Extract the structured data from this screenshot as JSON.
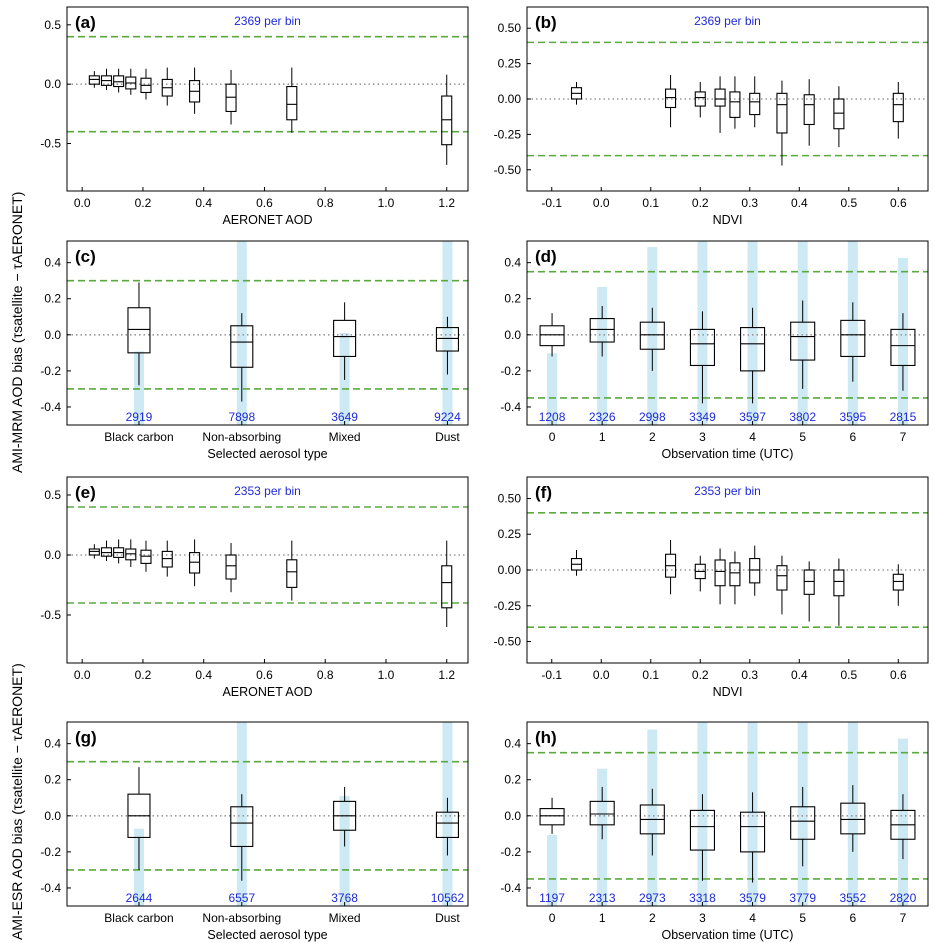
{
  "figure": {
    "ylabel_top": "AMI-MRM AOD bias (τsatellite − τAERONET)",
    "ylabel_bottom": "AMI-ESR AOD bias (τsatellite − τAERONET)"
  },
  "colors": {
    "ref_line": "#5aaa3e",
    "zero_line": "#999999",
    "count_bar": "#cce9f4",
    "count_text": "#1f2ad6"
  },
  "chart_data": [
    {
      "panel": "(a)",
      "type": "box",
      "note": "2369 per bin",
      "xlabel": "AERONET AOD",
      "xlim": [
        -0.05,
        1.27
      ],
      "ylim": [
        -0.9,
        0.65
      ],
      "xticks": [
        "0.0",
        "0.2",
        "0.4",
        "0.6",
        "0.8",
        "1.0",
        "1.2"
      ],
      "xtick_vals": [
        0,
        0.2,
        0.4,
        0.6,
        0.8,
        1.0,
        1.2
      ],
      "yticks": [
        "-0.5",
        "0.0",
        "0.5"
      ],
      "ytick_vals": [
        -0.5,
        0,
        0.5
      ],
      "ref_lines": [
        0.4,
        -0.4
      ],
      "boxes": [
        {
          "x": 0.04,
          "lo": -0.03,
          "q1": 0.0,
          "med": 0.04,
          "q3": 0.07,
          "hi": 0.11
        },
        {
          "x": 0.08,
          "lo": -0.05,
          "q1": -0.01,
          "med": 0.03,
          "q3": 0.07,
          "hi": 0.13
        },
        {
          "x": 0.12,
          "lo": -0.07,
          "q1": -0.02,
          "med": 0.02,
          "q3": 0.07,
          "hi": 0.13
        },
        {
          "x": 0.16,
          "lo": -0.09,
          "q1": -0.04,
          "med": 0.01,
          "q3": 0.06,
          "hi": 0.13
        },
        {
          "x": 0.21,
          "lo": -0.13,
          "q1": -0.07,
          "med": -0.01,
          "q3": 0.05,
          "hi": 0.13
        },
        {
          "x": 0.28,
          "lo": -0.18,
          "q1": -0.1,
          "med": -0.03,
          "q3": 0.04,
          "hi": 0.14
        },
        {
          "x": 0.37,
          "lo": -0.25,
          "q1": -0.15,
          "med": -0.06,
          "q3": 0.03,
          "hi": 0.14
        },
        {
          "x": 0.49,
          "lo": -0.34,
          "q1": -0.23,
          "med": -0.11,
          "q3": 0.0,
          "hi": 0.12
        },
        {
          "x": 0.69,
          "lo": -0.41,
          "q1": -0.3,
          "med": -0.17,
          "q3": -0.02,
          "hi": 0.14
        },
        {
          "x": 1.2,
          "lo": -0.68,
          "q1": -0.51,
          "med": -0.3,
          "q3": -0.1,
          "hi": 0.08
        }
      ]
    },
    {
      "panel": "(b)",
      "type": "box",
      "note": "2369 per bin",
      "xlabel": "NDVI",
      "xlim": [
        -0.15,
        0.66
      ],
      "ylim": [
        -0.65,
        0.65
      ],
      "xticks": [
        "-0.1",
        "0.0",
        "0.1",
        "0.2",
        "0.3",
        "0.4",
        "0.5",
        "0.6"
      ],
      "xtick_vals": [
        -0.1,
        0,
        0.1,
        0.2,
        0.3,
        0.4,
        0.5,
        0.6
      ],
      "yticks": [
        "-0.50",
        "-0.25",
        "0.00",
        "0.25",
        "0.50"
      ],
      "ytick_vals": [
        -0.5,
        -0.25,
        0,
        0.25,
        0.5
      ],
      "ref_lines": [
        0.4,
        -0.4
      ],
      "boxes": [
        {
          "x": -0.05,
          "lo": -0.04,
          "q1": 0.0,
          "med": 0.04,
          "q3": 0.08,
          "hi": 0.12
        },
        {
          "x": 0.14,
          "lo": -0.2,
          "q1": -0.06,
          "med": 0.01,
          "q3": 0.07,
          "hi": 0.17
        },
        {
          "x": 0.2,
          "lo": -0.13,
          "q1": -0.05,
          "med": 0.01,
          "q3": 0.05,
          "hi": 0.12
        },
        {
          "x": 0.24,
          "lo": -0.24,
          "q1": -0.05,
          "med": 0.0,
          "q3": 0.07,
          "hi": 0.16
        },
        {
          "x": 0.27,
          "lo": -0.21,
          "q1": -0.13,
          "med": -0.02,
          "q3": 0.05,
          "hi": 0.16
        },
        {
          "x": 0.31,
          "lo": -0.2,
          "q1": -0.11,
          "med": -0.02,
          "q3": 0.04,
          "hi": 0.16
        },
        {
          "x": 0.365,
          "lo": -0.47,
          "q1": -0.24,
          "med": -0.04,
          "q3": 0.04,
          "hi": 0.13
        },
        {
          "x": 0.42,
          "lo": -0.33,
          "q1": -0.18,
          "med": -0.04,
          "q3": 0.03,
          "hi": 0.14
        },
        {
          "x": 0.48,
          "lo": -0.34,
          "q1": -0.21,
          "med": -0.1,
          "q3": 0.0,
          "hi": 0.09
        },
        {
          "x": 0.6,
          "lo": -0.28,
          "q1": -0.16,
          "med": -0.04,
          "q3": 0.04,
          "hi": 0.12
        }
      ]
    },
    {
      "panel": "(c)",
      "type": "box",
      "xlabel": "Selected aerosol type",
      "xlim": [
        0.3,
        4.2
      ],
      "ylim": [
        -0.5,
        0.52
      ],
      "xticks": [
        "Black carbon",
        "Non-absorbing",
        "Mixed",
        "Dust"
      ],
      "xtick_vals": [
        1,
        2,
        3,
        4
      ],
      "yticks": [
        "-0.4",
        "-0.2",
        "0.0",
        "0.2",
        "0.4"
      ],
      "ytick_vals": [
        -0.4,
        -0.2,
        0,
        0.2,
        0.4
      ],
      "ref_lines": [
        0.3,
        -0.3
      ],
      "count_labels": [
        "2919",
        "7898",
        "3649",
        "9224"
      ],
      "counts": [
        2919,
        7898,
        3649,
        9224
      ],
      "count_ymax": 7300,
      "boxes": [
        {
          "x": 1,
          "lo": -0.28,
          "q1": -0.1,
          "med": 0.03,
          "q3": 0.15,
          "hi": 0.29
        },
        {
          "x": 2,
          "lo": -0.37,
          "q1": -0.18,
          "med": -0.04,
          "q3": 0.05,
          "hi": 0.12
        },
        {
          "x": 3,
          "lo": -0.25,
          "q1": -0.12,
          "med": -0.01,
          "q3": 0.08,
          "hi": 0.18
        },
        {
          "x": 4,
          "lo": -0.22,
          "q1": -0.09,
          "med": -0.02,
          "q3": 0.04,
          "hi": 0.1
        }
      ]
    },
    {
      "panel": "(d)",
      "type": "box",
      "xlabel": "Observation time (UTC)",
      "xlim": [
        -0.5,
        7.5
      ],
      "ylim": [
        -0.5,
        0.52
      ],
      "xticks": [
        "0",
        "1",
        "2",
        "3",
        "4",
        "5",
        "6",
        "7"
      ],
      "xtick_vals": [
        0,
        1,
        2,
        3,
        4,
        5,
        6,
        7
      ],
      "yticks": [
        "-0.4",
        "-0.2",
        "0.0",
        "0.2",
        "0.4"
      ],
      "ytick_vals": [
        -0.4,
        -0.2,
        0,
        0.2,
        0.4
      ],
      "ref_lines": [
        0.35,
        -0.35
      ],
      "count_labels": [
        "1208",
        "2326",
        "2998",
        "3349",
        "3597",
        "3802",
        "3595",
        "2815"
      ],
      "counts": [
        1208,
        2326,
        2998,
        3349,
        3597,
        3802,
        3595,
        2815
      ],
      "count_ymax": 3100,
      "boxes": [
        {
          "x": 0,
          "lo": -0.12,
          "q1": -0.06,
          "med": 0.0,
          "q3": 0.05,
          "hi": 0.12
        },
        {
          "x": 1,
          "lo": -0.12,
          "q1": -0.04,
          "med": 0.03,
          "q3": 0.09,
          "hi": 0.16
        },
        {
          "x": 2,
          "lo": -0.2,
          "q1": -0.08,
          "med": 0.0,
          "q3": 0.07,
          "hi": 0.15
        },
        {
          "x": 3,
          "lo": -0.38,
          "q1": -0.17,
          "med": -0.05,
          "q3": 0.03,
          "hi": 0.13
        },
        {
          "x": 4,
          "lo": -0.38,
          "q1": -0.2,
          "med": -0.05,
          "q3": 0.04,
          "hi": 0.15
        },
        {
          "x": 5,
          "lo": -0.3,
          "q1": -0.14,
          "med": -0.01,
          "q3": 0.07,
          "hi": 0.19
        },
        {
          "x": 6,
          "lo": -0.26,
          "q1": -0.12,
          "med": 0.0,
          "q3": 0.08,
          "hi": 0.18
        },
        {
          "x": 7,
          "lo": -0.31,
          "q1": -0.17,
          "med": -0.06,
          "q3": 0.03,
          "hi": 0.12
        }
      ]
    },
    {
      "panel": "(e)",
      "type": "box",
      "note": "2353 per bin",
      "xlabel": "AERONET AOD",
      "xlim": [
        -0.05,
        1.27
      ],
      "ylim": [
        -0.9,
        0.65
      ],
      "xticks": [
        "0.0",
        "0.2",
        "0.4",
        "0.6",
        "0.8",
        "1.0",
        "1.2"
      ],
      "xtick_vals": [
        0,
        0.2,
        0.4,
        0.6,
        0.8,
        1.0,
        1.2
      ],
      "yticks": [
        "-0.5",
        "0.0",
        "0.5"
      ],
      "ytick_vals": [
        -0.5,
        0,
        0.5
      ],
      "ref_lines": [
        0.4,
        -0.4
      ],
      "boxes": [
        {
          "x": 0.04,
          "lo": -0.03,
          "q1": 0.0,
          "med": 0.03,
          "q3": 0.05,
          "hi": 0.09
        },
        {
          "x": 0.08,
          "lo": -0.05,
          "q1": -0.01,
          "med": 0.02,
          "q3": 0.06,
          "hi": 0.12
        },
        {
          "x": 0.12,
          "lo": -0.07,
          "q1": -0.02,
          "med": 0.02,
          "q3": 0.06,
          "hi": 0.13
        },
        {
          "x": 0.16,
          "lo": -0.1,
          "q1": -0.04,
          "med": 0.01,
          "q3": 0.05,
          "hi": 0.13
        },
        {
          "x": 0.21,
          "lo": -0.14,
          "q1": -0.07,
          "med": -0.01,
          "q3": 0.04,
          "hi": 0.12
        },
        {
          "x": 0.28,
          "lo": -0.18,
          "q1": -0.1,
          "med": -0.03,
          "q3": 0.03,
          "hi": 0.12
        },
        {
          "x": 0.37,
          "lo": -0.26,
          "q1": -0.15,
          "med": -0.06,
          "q3": 0.02,
          "hi": 0.13
        },
        {
          "x": 0.49,
          "lo": -0.31,
          "q1": -0.2,
          "med": -0.09,
          "q3": 0.0,
          "hi": 0.1
        },
        {
          "x": 0.69,
          "lo": -0.38,
          "q1": -0.27,
          "med": -0.14,
          "q3": -0.04,
          "hi": 0.12
        },
        {
          "x": 1.2,
          "lo": -0.6,
          "q1": -0.44,
          "med": -0.23,
          "q3": -0.09,
          "hi": 0.12
        }
      ]
    },
    {
      "panel": "(f)",
      "type": "box",
      "note": "2353 per bin",
      "xlabel": "NDVI",
      "xlim": [
        -0.15,
        0.66
      ],
      "ylim": [
        -0.65,
        0.65
      ],
      "xticks": [
        "-0.1",
        "0.0",
        "0.1",
        "0.2",
        "0.3",
        "0.4",
        "0.5",
        "0.6"
      ],
      "xtick_vals": [
        -0.1,
        0,
        0.1,
        0.2,
        0.3,
        0.4,
        0.5,
        0.6
      ],
      "yticks": [
        "-0.50",
        "-0.25",
        "0.00",
        "0.25",
        "0.50"
      ],
      "ytick_vals": [
        -0.5,
        -0.25,
        0,
        0.25,
        0.5
      ],
      "ref_lines": [
        0.4,
        -0.4
      ],
      "boxes": [
        {
          "x": -0.05,
          "lo": -0.04,
          "q1": 0.0,
          "med": 0.04,
          "q3": 0.08,
          "hi": 0.14
        },
        {
          "x": 0.14,
          "lo": -0.17,
          "q1": -0.05,
          "med": 0.03,
          "q3": 0.11,
          "hi": 0.21
        },
        {
          "x": 0.2,
          "lo": -0.15,
          "q1": -0.06,
          "med": -0.01,
          "q3": 0.04,
          "hi": 0.1
        },
        {
          "x": 0.24,
          "lo": -0.24,
          "q1": -0.11,
          "med": -0.01,
          "q3": 0.07,
          "hi": 0.15
        },
        {
          "x": 0.27,
          "lo": -0.24,
          "q1": -0.11,
          "med": -0.02,
          "q3": 0.05,
          "hi": 0.13
        },
        {
          "x": 0.31,
          "lo": -0.18,
          "q1": -0.09,
          "med": 0.0,
          "q3": 0.08,
          "hi": 0.17
        },
        {
          "x": 0.365,
          "lo": -0.31,
          "q1": -0.14,
          "med": -0.04,
          "q3": 0.03,
          "hi": 0.1
        },
        {
          "x": 0.42,
          "lo": -0.36,
          "q1": -0.17,
          "med": -0.08,
          "q3": 0.0,
          "hi": 0.06
        },
        {
          "x": 0.48,
          "lo": -0.39,
          "q1": -0.18,
          "med": -0.08,
          "q3": 0.0,
          "hi": 0.08
        },
        {
          "x": 0.6,
          "lo": -0.25,
          "q1": -0.14,
          "med": -0.08,
          "q3": -0.03,
          "hi": 0.04
        }
      ]
    },
    {
      "panel": "(g)",
      "type": "box",
      "xlabel": "Selected aerosol type",
      "xlim": [
        0.3,
        4.2
      ],
      "ylim": [
        -0.5,
        0.52
      ],
      "xticks": [
        "Black carbon",
        "Non-absorbing",
        "Mixed",
        "Dust"
      ],
      "xtick_vals": [
        1,
        2,
        3,
        4
      ],
      "yticks": [
        "-0.4",
        "-0.2",
        "0.0",
        "0.2",
        "0.4"
      ],
      "ytick_vals": [
        -0.4,
        -0.2,
        0,
        0.2,
        0.4
      ],
      "ref_lines": [
        0.3,
        -0.3
      ],
      "count_labels": [
        "2644",
        "6557",
        "3768",
        "10562"
      ],
      "counts": [
        2644,
        6557,
        3768,
        10562
      ],
      "count_ymax": 6300,
      "boxes": [
        {
          "x": 1,
          "lo": -0.3,
          "q1": -0.12,
          "med": 0.0,
          "q3": 0.12,
          "hi": 0.27
        },
        {
          "x": 2,
          "lo": -0.36,
          "q1": -0.17,
          "med": -0.04,
          "q3": 0.05,
          "hi": 0.12
        },
        {
          "x": 3,
          "lo": -0.17,
          "q1": -0.08,
          "med": 0.0,
          "q3": 0.08,
          "hi": 0.16
        },
        {
          "x": 4,
          "lo": -0.22,
          "q1": -0.12,
          "med": -0.04,
          "q3": 0.02,
          "hi": 0.1
        }
      ]
    },
    {
      "panel": "(h)",
      "type": "box",
      "xlabel": "Observation time (UTC)",
      "xlim": [
        -0.5,
        7.5
      ],
      "ylim": [
        -0.5,
        0.52
      ],
      "xticks": [
        "0",
        "1",
        "2",
        "3",
        "4",
        "5",
        "6",
        "7"
      ],
      "xtick_vals": [
        0,
        1,
        2,
        3,
        4,
        5,
        6,
        7
      ],
      "yticks": [
        "-0.4",
        "-0.2",
        "0.0",
        "0.2",
        "0.4"
      ],
      "ytick_vals": [
        -0.4,
        -0.2,
        0,
        0.2,
        0.4
      ],
      "ref_lines": [
        0.35,
        -0.35
      ],
      "count_labels": [
        "1197",
        "2313",
        "2973",
        "3318",
        "3579",
        "3779",
        "3552",
        "2820"
      ],
      "counts": [
        1197,
        2313,
        2973,
        3318,
        3579,
        3779,
        3552,
        2820
      ],
      "count_ymax": 3100,
      "boxes": [
        {
          "x": 0,
          "lo": -0.1,
          "q1": -0.05,
          "med": 0.0,
          "q3": 0.04,
          "hi": 0.1
        },
        {
          "x": 1,
          "lo": -0.13,
          "q1": -0.05,
          "med": 0.01,
          "q3": 0.08,
          "hi": 0.16
        },
        {
          "x": 2,
          "lo": -0.22,
          "q1": -0.1,
          "med": -0.02,
          "q3": 0.06,
          "hi": 0.15
        },
        {
          "x": 3,
          "lo": -0.36,
          "q1": -0.19,
          "med": -0.06,
          "q3": 0.03,
          "hi": 0.12
        },
        {
          "x": 4,
          "lo": -0.37,
          "q1": -0.2,
          "med": -0.06,
          "q3": 0.02,
          "hi": 0.13
        },
        {
          "x": 5,
          "lo": -0.28,
          "q1": -0.13,
          "med": -0.03,
          "q3": 0.05,
          "hi": 0.16
        },
        {
          "x": 6,
          "lo": -0.2,
          "q1": -0.1,
          "med": -0.02,
          "q3": 0.07,
          "hi": 0.17
        },
        {
          "x": 7,
          "lo": -0.24,
          "q1": -0.13,
          "med": -0.05,
          "q3": 0.03,
          "hi": 0.12
        }
      ]
    }
  ]
}
